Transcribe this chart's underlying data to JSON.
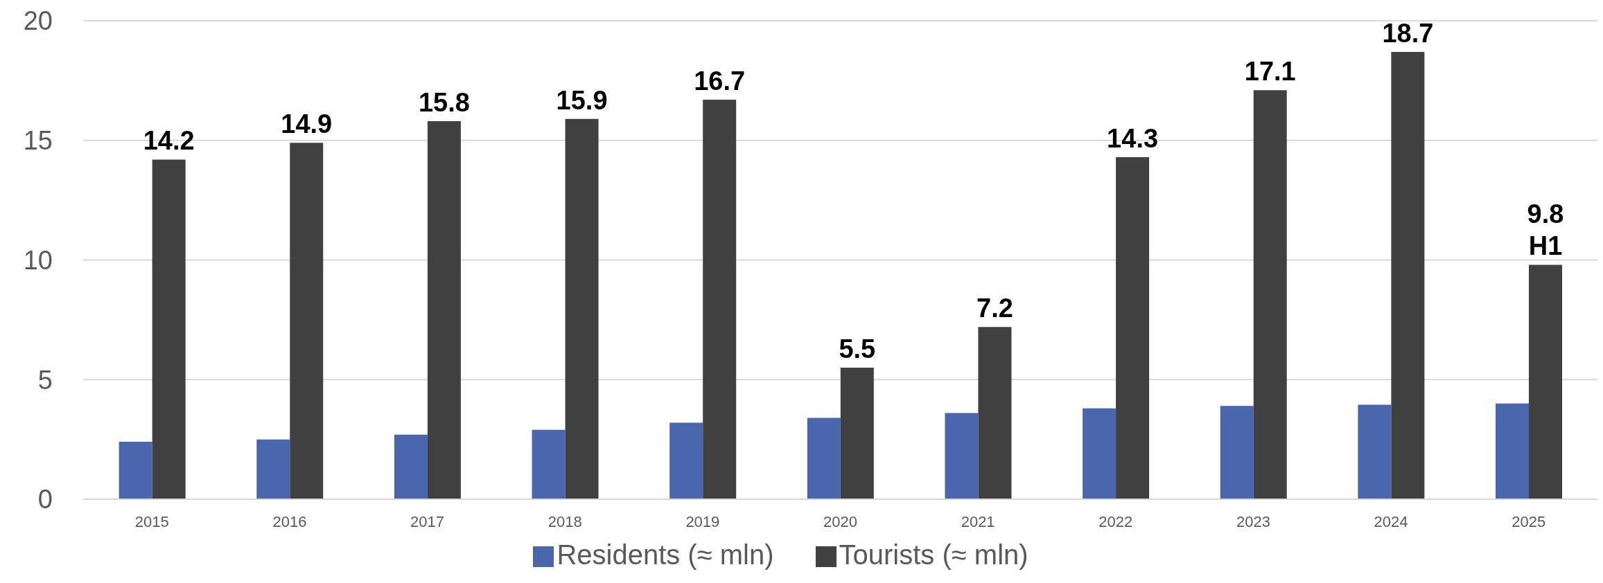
{
  "chart_data": {
    "type": "bar",
    "categories": [
      "2015",
      "2016",
      "2017",
      "2018",
      "2019",
      "2020",
      "2021",
      "2022",
      "2023",
      "2024",
      "2025"
    ],
    "series": [
      {
        "name": "Residents (≈ mln)",
        "color": "#4a66ac",
        "values": [
          2.4,
          2.5,
          2.7,
          2.9,
          3.2,
          3.4,
          3.6,
          3.8,
          3.9,
          3.95,
          4.0
        ]
      },
      {
        "name": "Tourists (≈ mln)",
        "color": "#404040",
        "values": [
          14.2,
          14.9,
          15.8,
          15.9,
          16.7,
          5.5,
          7.2,
          14.3,
          17.1,
          18.7,
          9.8
        ],
        "value_labels": [
          "14.2",
          "14.9",
          "15.8",
          "15.9",
          "16.7",
          "5.5",
          "7.2",
          "14.3",
          "17.1",
          "18.7",
          "9.8 H1"
        ]
      }
    ],
    "ylim": [
      0,
      20
    ],
    "yticks": [
      0,
      5,
      10,
      15,
      20
    ],
    "grid": "y",
    "legend": "bottom"
  }
}
